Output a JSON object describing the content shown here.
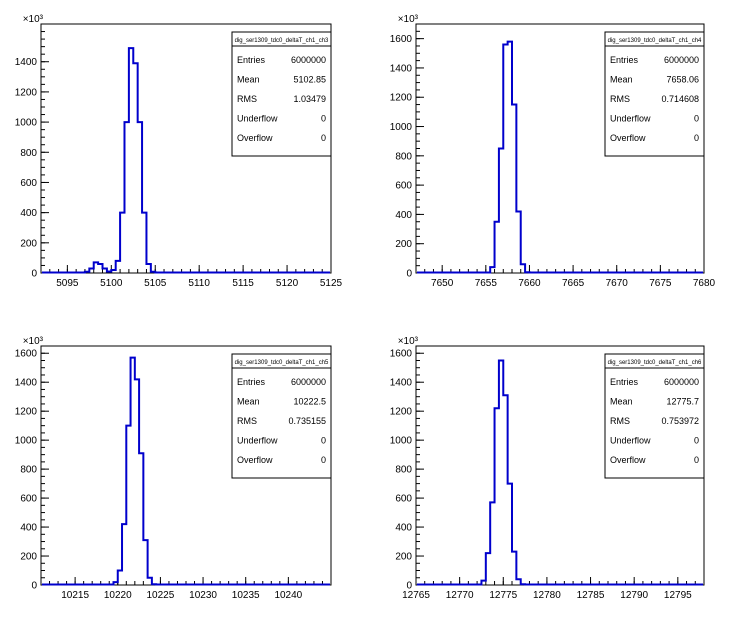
{
  "chart_data": [
    {
      "type": "histogram",
      "title": "",
      "exponent_label": "×10³",
      "xlim": [
        5092,
        5125
      ],
      "ylim": [
        0,
        1650
      ],
      "x_ticks": [
        5095,
        5100,
        5105,
        5110,
        5115,
        5120,
        5125
      ],
      "y_ticks": [
        0,
        200,
        400,
        600,
        800,
        1000,
        1200,
        1400
      ],
      "bin_width": 0.5,
      "bins": [
        {
          "x": 5097.0,
          "y": 8
        },
        {
          "x": 5097.5,
          "y": 30
        },
        {
          "x": 5098.0,
          "y": 70
        },
        {
          "x": 5098.5,
          "y": 60
        },
        {
          "x": 5099.0,
          "y": 30
        },
        {
          "x": 5099.5,
          "y": 10
        },
        {
          "x": 5100.0,
          "y": 20
        },
        {
          "x": 5100.5,
          "y": 80
        },
        {
          "x": 5101.0,
          "y": 400
        },
        {
          "x": 5101.5,
          "y": 1000
        },
        {
          "x": 5102.0,
          "y": 1490
        },
        {
          "x": 5102.5,
          "y": 1390
        },
        {
          "x": 5103.0,
          "y": 1000
        },
        {
          "x": 5103.5,
          "y": 400
        },
        {
          "x": 5104.0,
          "y": 60
        },
        {
          "x": 5104.5,
          "y": 8
        }
      ],
      "stats": {
        "name": "dig_ser1309_tdc0_deltaT_ch1_ch3",
        "rows": [
          {
            "label": "Entries",
            "value": "6000000"
          },
          {
            "label": "Mean",
            "value": "5102.85"
          },
          {
            "label": "RMS",
            "value": "1.03479"
          },
          {
            "label": "Underflow",
            "value": "0"
          },
          {
            "label": "Overflow",
            "value": "0"
          }
        ]
      }
    },
    {
      "type": "histogram",
      "title": "",
      "exponent_label": "×10³",
      "xlim": [
        7647,
        7680
      ],
      "ylim": [
        0,
        1700
      ],
      "x_ticks": [
        7650,
        7655,
        7660,
        7665,
        7670,
        7675,
        7680
      ],
      "y_ticks": [
        0,
        200,
        400,
        600,
        800,
        1000,
        1200,
        1400,
        1600
      ],
      "bin_width": 0.5,
      "bins": [
        {
          "x": 7655.5,
          "y": 40
        },
        {
          "x": 7656.0,
          "y": 350
        },
        {
          "x": 7656.5,
          "y": 850
        },
        {
          "x": 7657.0,
          "y": 1560
        },
        {
          "x": 7657.5,
          "y": 1580
        },
        {
          "x": 7658.0,
          "y": 1150
        },
        {
          "x": 7658.5,
          "y": 420
        },
        {
          "x": 7659.0,
          "y": 60
        },
        {
          "x": 7659.5,
          "y": 5
        }
      ],
      "stats": {
        "name": "dig_ser1309_tdc0_deltaT_ch1_ch4",
        "rows": [
          {
            "label": "Entries",
            "value": "6000000"
          },
          {
            "label": "Mean",
            "value": "7658.06"
          },
          {
            "label": "RMS",
            "value": "0.714608"
          },
          {
            "label": "Underflow",
            "value": "0"
          },
          {
            "label": "Overflow",
            "value": "0"
          }
        ]
      }
    },
    {
      "type": "histogram",
      "title": "",
      "exponent_label": "×10³",
      "xlim": [
        10211,
        10245
      ],
      "ylim": [
        0,
        1650
      ],
      "x_ticks": [
        10215,
        10220,
        10225,
        10230,
        10235,
        10240
      ],
      "y_ticks": [
        0,
        200,
        400,
        600,
        800,
        1000,
        1200,
        1400,
        1600
      ],
      "bin_width": 0.5,
      "bins": [
        {
          "x": 10219.5,
          "y": 20
        },
        {
          "x": 10220.0,
          "y": 100
        },
        {
          "x": 10220.5,
          "y": 420
        },
        {
          "x": 10221.0,
          "y": 1100
        },
        {
          "x": 10221.5,
          "y": 1570
        },
        {
          "x": 10222.0,
          "y": 1420
        },
        {
          "x": 10222.5,
          "y": 910
        },
        {
          "x": 10223.0,
          "y": 310
        },
        {
          "x": 10223.5,
          "y": 50
        },
        {
          "x": 10224.0,
          "y": 5
        }
      ],
      "stats": {
        "name": "dig_ser1309_tdc0_deltaT_ch1_ch5",
        "rows": [
          {
            "label": "Entries",
            "value": "6000000"
          },
          {
            "label": "Mean",
            "value": "10222.5"
          },
          {
            "label": "RMS",
            "value": "0.735155"
          },
          {
            "label": "Underflow",
            "value": "0"
          },
          {
            "label": "Overflow",
            "value": "0"
          }
        ]
      }
    },
    {
      "type": "histogram",
      "title": "",
      "exponent_label": "×10³",
      "xlim": [
        12765,
        12798
      ],
      "ylim": [
        0,
        1650
      ],
      "x_ticks": [
        12765,
        12770,
        12775,
        12780,
        12785,
        12790,
        12795
      ],
      "y_ticks": [
        0,
        200,
        400,
        600,
        800,
        1000,
        1200,
        1400,
        1600
      ],
      "bin_width": 0.5,
      "bins": [
        {
          "x": 12772.5,
          "y": 30
        },
        {
          "x": 12773.0,
          "y": 220
        },
        {
          "x": 12773.5,
          "y": 570
        },
        {
          "x": 12774.0,
          "y": 1220
        },
        {
          "x": 12774.5,
          "y": 1550
        },
        {
          "x": 12775.0,
          "y": 1310
        },
        {
          "x": 12775.5,
          "y": 700
        },
        {
          "x": 12776.0,
          "y": 230
        },
        {
          "x": 12776.5,
          "y": 40
        },
        {
          "x": 12777.0,
          "y": 5
        }
      ],
      "stats": {
        "name": "dig_ser1309_tdc0_deltaT_ch1_ch6",
        "rows": [
          {
            "label": "Entries",
            "value": "6000000"
          },
          {
            "label": "Mean",
            "value": "12775.7"
          },
          {
            "label": "RMS",
            "value": "0.753972"
          },
          {
            "label": "Underflow",
            "value": "0"
          },
          {
            "label": "Overflow",
            "value": "0"
          }
        ]
      }
    }
  ],
  "style": {
    "line_color": "#0000cc",
    "axis_color": "#000000",
    "background": "#ffffff"
  }
}
